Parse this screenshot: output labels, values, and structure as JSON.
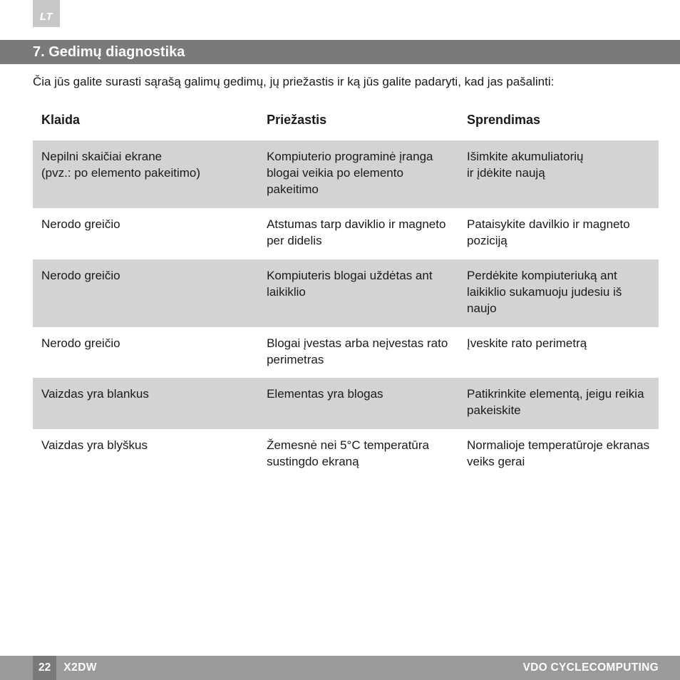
{
  "lang_tag": "LT",
  "section_title": "7.  Gedimų diagnostika",
  "intro": "Čia jūs galite surasti sąrašą galimų gedimų, jų priežastis ir ką jūs galite padaryti, kad jas pašalinti:",
  "columns": {
    "c1": "Klaida",
    "c2": "Priežastis",
    "c3": "Sprendimas"
  },
  "rows": [
    {
      "shaded": true,
      "c1": "Nepilni skaičiai ekrane\n(pvz.: po elemento pakeitimo)",
      "c2": "Kompiuterio programinė įranga blogai veikia po elemento  pakeitimo",
      "c3": "Išimkite akumuliatorių\nir įdėkite naują"
    },
    {
      "shaded": false,
      "c1": "Nerodo greičio",
      "c2": "Atstumas tarp daviklio ir magneto per didelis",
      "c3": "Pataisykite davilkio ir magneto poziciją"
    },
    {
      "shaded": true,
      "c1": "Nerodo greičio",
      "c2": "Kompiuteris blogai uždėtas ant laikiklio",
      "c3": "Perdėkite kompiuteriuką ant laikiklio sukamuoju judesiu iš naujo"
    },
    {
      "shaded": false,
      "c1": "Nerodo greičio",
      "c2": "Blogai įvestas arba neįvestas rato perimetras",
      "c3": "Įveskite rato perimetrą"
    },
    {
      "shaded": true,
      "c1": "Vaizdas yra blankus",
      "c2": "Elementas yra blogas",
      "c3": "Patikrinkite elementą, jeigu reikia pakeiskite"
    },
    {
      "shaded": false,
      "c1": "Vaizdas yra blyškus",
      "c2": "Žemesnė nei 5°C temperatūra sustingdo ekraną",
      "c3": "Normalioje temperatūroje ekranas veiks gerai"
    }
  ],
  "footer": {
    "page": "22",
    "model": "X2DW",
    "brand": "VDO CYCLECOMPUTING"
  },
  "colors": {
    "section_bar": "#7a7a7a",
    "footer_bar": "#9a9a9a",
    "page_box": "#7a7a7a",
    "row_shade": "#d3d3d3",
    "lang_tab": "#c7c7c7",
    "text": "#1a1a1a"
  }
}
